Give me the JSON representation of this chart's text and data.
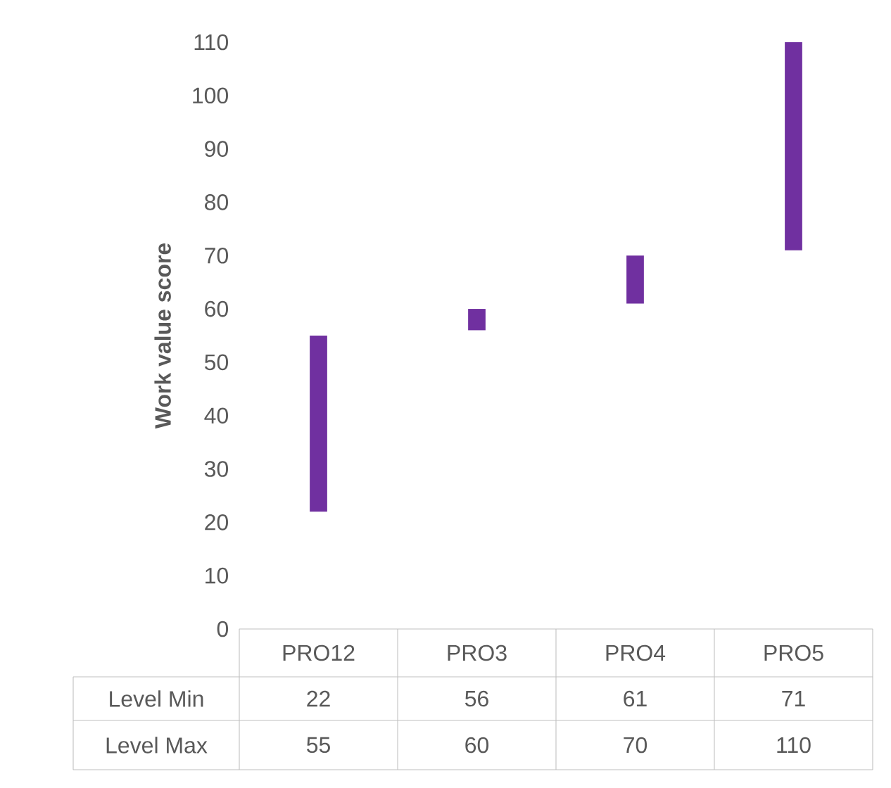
{
  "chart_data": {
    "type": "bar",
    "ylabel": "Work value score",
    "categories": [
      "PRO12",
      "PRO3",
      "PRO4",
      "PRO5"
    ],
    "series": [
      {
        "color": "#7030a0",
        "base": [
          22,
          56,
          61,
          71
        ],
        "values": [
          33,
          4,
          9,
          39
        ]
      }
    ],
    "ylim": [
      0,
      110
    ],
    "yticks": [
      0,
      10,
      20,
      30,
      40,
      50,
      60,
      70,
      80,
      90,
      100,
      110
    ],
    "annotations": [
      "Level Min",
      "22",
      "56",
      "61",
      "71",
      "Level Max",
      "55",
      "60",
      "70",
      "110"
    ]
  }
}
